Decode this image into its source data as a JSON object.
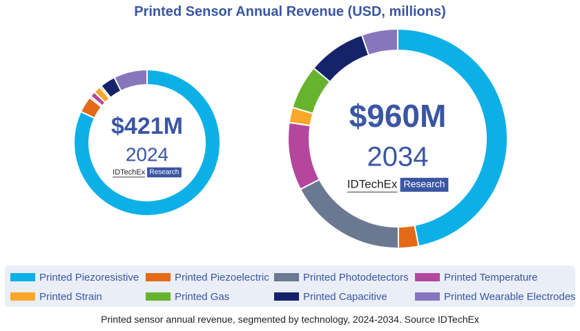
{
  "colors": {
    "title": "#3a56a3",
    "center_text": "#3a56a3",
    "badge_bg": "#3a56a3",
    "badge_text": "#ffffff"
  },
  "chart_data": {
    "type": "pie",
    "title": "Printed Sensor Annual Revenue (USD, millions)",
    "caption": "Printed sensor annual revenue, segmented by technology, 2024-2034. Source IDTechEx",
    "categories": [
      "Printed Piezoresistive",
      "Printed Piezoelectric",
      "Printed Photodetectors",
      "Printed Temperature",
      "Printed Strain",
      "Printed Gas",
      "Printed Capacitive",
      "Printed Wearable Electrodes"
    ],
    "series_colors": [
      "#0db0e6",
      "#e56a17",
      "#6a7891",
      "#b4479d",
      "#fba82a",
      "#67b32e",
      "#15236a",
      "#8876bc"
    ],
    "series": [
      {
        "name": "2024",
        "total_label": "$421M",
        "year_label": "2024",
        "values": [
          82,
          3.6,
          0.4,
          1.2,
          1.6,
          0.4,
          3.4,
          7.4
        ]
      },
      {
        "name": "2034",
        "total_label": "$960M",
        "year_label": "2034",
        "values": [
          46,
          2.9,
          17.1,
          9.8,
          2.2,
          6.4,
          8.4,
          5.2
        ]
      }
    ],
    "unit": "% share of annual revenue (approx.)"
  },
  "logo": {
    "brand": "IDTechEx",
    "badge": "Research"
  }
}
